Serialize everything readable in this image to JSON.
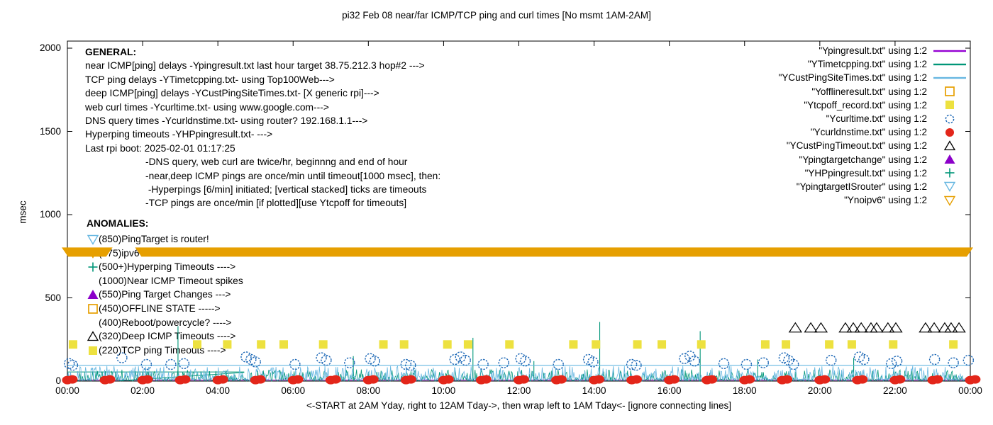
{
  "title": "pi32 Feb 08  near/far ICMP/TCP ping and curl times [No msmt 1AM-2AM]",
  "y_axis": {
    "label": "msec",
    "ticks": [
      0,
      500,
      1000,
      1500,
      2000
    ],
    "max": 2000
  },
  "x_axis": {
    "label": "<-START at 2AM Yday, right to 12AM Tday->, then wrap left to 1AM Tday<- [ignore connecting lines]",
    "ticks": [
      "00:00",
      "02:00",
      "04:00",
      "06:00",
      "08:00",
      "10:00",
      "12:00",
      "14:00",
      "16:00",
      "18:00",
      "20:00",
      "22:00",
      "00:00"
    ]
  },
  "general": {
    "heading": "GENERAL:",
    "lines": [
      "near ICMP[ping] delays -Ypingresult.txt last hour target 38.75.212.3 hop#2 --->",
      "TCP ping delays -YTimetcpping.txt- using Top100Web--->",
      "deep ICMP[ping] delays -YCustPingSiteTimes.txt- [X generic rpi]--->",
      "web curl times -Ycurltime.txt- using www.google.com--->",
      "DNS query times -Ycurldnstime.txt- using router? 192.168.1.1--->",
      "Hyperping timeouts -YHPpingresult.txt- --->",
      "Last rpi boot: 2025-02-01 01:17:25"
    ],
    "notes": [
      "-DNS query, web curl are twice/hr, beginnng and end of hour",
      "-near,deep ICMP pings are once/min until timeout[1000 msec], then:",
      " -Hyperpings [6/min] initiated; [vertical stacked] ticks are timeouts",
      "-TCP pings are once/min [if plotted][use Ytcpoff for timeouts]"
    ]
  },
  "anomalies": {
    "heading": "ANOMALIES:",
    "lines": [
      {
        "icon": "tri-down-open",
        "color": "#67B7E1",
        "text": "(850)PingTarget is router!"
      },
      {
        "icon": "tri-down-open",
        "color": "#E69F00",
        "text": "(775)ipv6 failed ->"
      },
      {
        "icon": "plus",
        "color": "#009678",
        "text": "(500+)Hyperping Timeouts ---->"
      },
      {
        "icon": "none",
        "color": "#000000",
        "text": "(1000)Near ICMP Timeout spikes"
      },
      {
        "icon": "tri-up-filled",
        "color": "#8B00C9",
        "text": "(550)Ping Target Changes --->"
      },
      {
        "icon": "square-open",
        "color": "#E69F00",
        "text": "(450)OFFLINE STATE ----->"
      },
      {
        "icon": "none",
        "color": "#000000",
        "text": "(400)Reboot/powercycle? ---->"
      },
      {
        "icon": "tri-up-open",
        "color": "#000000",
        "text": "(320)Deep ICMP Timeouts ---->"
      },
      {
        "icon": "square-filled",
        "color": "#EDE13F",
        "text": "(220)TCP ping Timeouts ---->"
      }
    ]
  },
  "legend": {
    "items": [
      {
        "label": "\"Ypingresult.txt\" using 1:2",
        "icon": "line",
        "color": "#9400D3"
      },
      {
        "label": "\"YTimetcpping.txt\" using 1:2",
        "icon": "line",
        "color": "#009678"
      },
      {
        "label": "\"YCustPingSiteTimes.txt\" using 1:2",
        "icon": "line",
        "color": "#67B7E1"
      },
      {
        "label": "\"Yofflineresult.txt\" using 1:2",
        "icon": "square-open",
        "color": "#E69F00"
      },
      {
        "label": "\"Ytcpoff_record.txt\" using 1:2",
        "icon": "square-filled",
        "color": "#EDE13F"
      },
      {
        "label": "\"Ycurltime.txt\" using 1:2",
        "icon": "circle-open",
        "color": "#1A66B5"
      },
      {
        "label": "\"Ycurldnstime.txt\" using 1:2",
        "icon": "circle-filled",
        "color": "#E3261A"
      },
      {
        "label": "\"YCustPingTimeout.txt\" using 1:2",
        "icon": "tri-up-open",
        "color": "#000000"
      },
      {
        "label": "\"Ypingtargetchange\" using 1:2",
        "icon": "tri-up-filled",
        "color": "#8B00C9"
      },
      {
        "label": "\"YHPpingresult.txt\" using 1:2",
        "icon": "plus",
        "color": "#009678"
      },
      {
        "label": "\"YpingtargetISrouter\" using 1:2",
        "icon": "tri-down-open",
        "color": "#67B7E1"
      },
      {
        "label": "\"Ynoipv6\" using 1:2",
        "icon": "tri-down-open",
        "color": "#E69F00"
      }
    ]
  },
  "chart_data": {
    "type": "line",
    "xlim_hours": [
      0,
      24
    ],
    "ylim": [
      0,
      2000
    ],
    "grid": false,
    "legend_position": "top-right-inside",
    "series": [
      {
        "name": "Ypingresult.txt",
        "style": "line",
        "color": "#9400D3",
        "points": [
          [
            0,
            6
          ],
          [
            24,
            6
          ]
        ]
      },
      {
        "name": "YTimetcpping.txt",
        "style": "noisy-line",
        "color": "#009678",
        "noise_baseline": 0,
        "noise_amplitude": 70,
        "seed": 42,
        "flat_segments": [
          [
            0,
            55,
            4.7
          ]
        ],
        "connecting_lines": [
          [
            1.4,
            2,
            4.7,
            52
          ]
        ],
        "spikes": [
          [
            2.94,
            330
          ],
          [
            7.6,
            150
          ],
          [
            10.78,
            260
          ],
          [
            12.4,
            120
          ],
          [
            14.15,
            355
          ],
          [
            16.82,
            300
          ],
          [
            18.35,
            130
          ],
          [
            20.9,
            140
          ]
        ]
      },
      {
        "name": "YCustPingSiteTimes.txt",
        "style": "noisy-line",
        "color": "#67B7E1",
        "noise_baseline": 6,
        "noise_amplitude": 85,
        "seed": 7,
        "flat_value": 95
      },
      {
        "name": "Yofflineresult.txt",
        "style": "square-open",
        "color": "#E69F00",
        "points": []
      },
      {
        "name": "Ytcpoff_record.txt",
        "style": "square-filled",
        "color": "#EDE13F",
        "value": 220,
        "hours": [
          0.15,
          3.45,
          4.25,
          5.15,
          5.75,
          6.8,
          8.4,
          8.95,
          10.1,
          10.65,
          11.75,
          13.45,
          14.05,
          15.15,
          15.8,
          16.85,
          18.55,
          19.1,
          20.25,
          20.85,
          21.95,
          23.55
        ]
      },
      {
        "name": "Ycurltime.txt",
        "style": "circle-open",
        "color": "#1A66B5",
        "points": [
          [
            0.05,
            105
          ],
          [
            0.14,
            95
          ],
          [
            1.45,
            140
          ],
          [
            2.1,
            100
          ],
          [
            2.75,
            100
          ],
          [
            3.1,
            105
          ],
          [
            4.75,
            145
          ],
          [
            4.88,
            130
          ],
          [
            5.0,
            115
          ],
          [
            6.05,
            100
          ],
          [
            6.75,
            140
          ],
          [
            6.88,
            125
          ],
          [
            7.5,
            110
          ],
          [
            8.05,
            135
          ],
          [
            8.17,
            120
          ],
          [
            9.0,
            100
          ],
          [
            9.12,
            95
          ],
          [
            10.3,
            130
          ],
          [
            10.45,
            145
          ],
          [
            10.58,
            125
          ],
          [
            11.05,
            100
          ],
          [
            11.6,
            110
          ],
          [
            12.05,
            135
          ],
          [
            12.17,
            120
          ],
          [
            13.05,
            100
          ],
          [
            13.85,
            130
          ],
          [
            13.97,
            115
          ],
          [
            15.0,
            100
          ],
          [
            15.12,
            95
          ],
          [
            16.4,
            135
          ],
          [
            16.55,
            150
          ],
          [
            16.67,
            120
          ],
          [
            17.45,
            105
          ],
          [
            18.05,
            100
          ],
          [
            18.5,
            110
          ],
          [
            19.05,
            140
          ],
          [
            19.17,
            125
          ],
          [
            19.3,
            100
          ],
          [
            20.3,
            125
          ],
          [
            21.05,
            145
          ],
          [
            21.17,
            130
          ],
          [
            21.9,
            105
          ],
          [
            22.05,
            120
          ],
          [
            23.05,
            130
          ],
          [
            23.55,
            110
          ],
          [
            23.95,
            125
          ]
        ]
      },
      {
        "name": "Ycurldnstime.txt",
        "style": "circle-filled",
        "color": "#E3261A",
        "value": 6,
        "hours": [
          0,
          1,
          2,
          3,
          4,
          5,
          6,
          7,
          8,
          9,
          10,
          11,
          12,
          13,
          14,
          15,
          16,
          17,
          18,
          19,
          20,
          21,
          22,
          23,
          24
        ],
        "pair_offset": 0.13
      },
      {
        "name": "YCustPingTimeout.txt",
        "style": "triangle-open",
        "color": "#000000",
        "value": 320,
        "hours": [
          19.35,
          19.76,
          20.03,
          20.68,
          20.89,
          21.1,
          21.36,
          21.51,
          21.81,
          22.02,
          22.81,
          23.04,
          23.32,
          23.49,
          23.7
        ]
      },
      {
        "name": "Ypingtargetchange",
        "style": "triangle-filled",
        "color": "#8B00C9",
        "points": []
      },
      {
        "name": "YHPpingresult.txt",
        "style": "plus",
        "color": "#009678",
        "points": []
      },
      {
        "name": "YpingtargetISrouter",
        "style": "triangle-down-open",
        "color": "#67B7E1",
        "points": []
      },
      {
        "name": "Ynoipv6",
        "style": "triangle-down-band",
        "color": "#E69F00",
        "value": 775,
        "segments": [
          [
            0,
            1.05
          ],
          [
            1.95,
            24
          ]
        ]
      }
    ]
  }
}
